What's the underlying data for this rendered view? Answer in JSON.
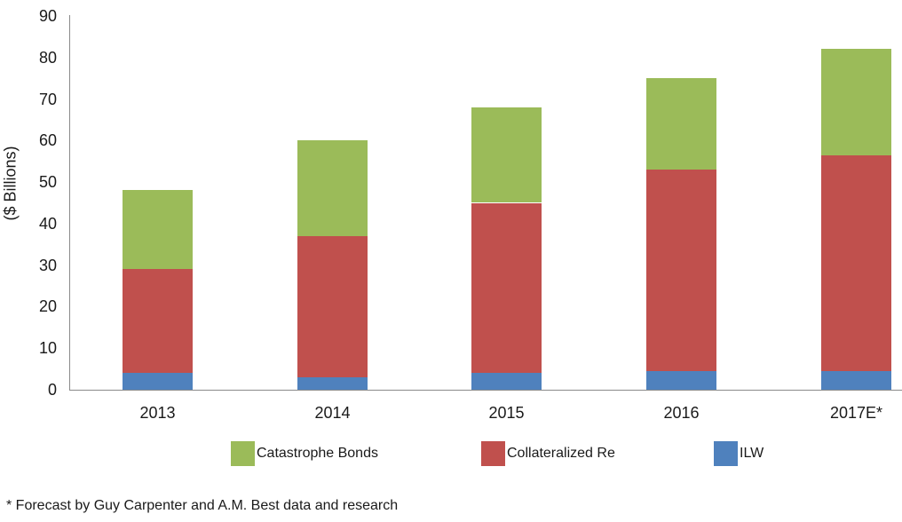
{
  "chart_data": {
    "type": "bar",
    "stacked": true,
    "title": "",
    "xlabel": "",
    "ylabel": "($ Billions)",
    "ylim": [
      0,
      90
    ],
    "yticks": [
      0,
      10,
      20,
      30,
      40,
      50,
      60,
      70,
      80,
      90
    ],
    "categories": [
      "2013",
      "2014",
      "2015",
      "2016",
      "2017E*"
    ],
    "series": [
      {
        "name": "ILW",
        "color": "#4f81bd",
        "values": [
          4,
          3,
          4,
          4.5,
          4.5
        ]
      },
      {
        "name": "Collateralized Re",
        "color": "#c0504d",
        "values": [
          25,
          34,
          41,
          48.5,
          52
        ]
      },
      {
        "name": "Catastrophe Bonds",
        "color": "#9bbb59",
        "values": [
          19,
          23,
          23,
          22,
          25.5
        ]
      }
    ],
    "totals": [
      48,
      60,
      68,
      75,
      82
    ],
    "legend": {
      "position": "bottom",
      "entries": [
        "Catastrophe Bonds",
        "Collateralized Re",
        "ILW"
      ]
    },
    "grid": false
  },
  "footnote": "* Forecast by Guy Carpenter and A.M. Best data and research"
}
